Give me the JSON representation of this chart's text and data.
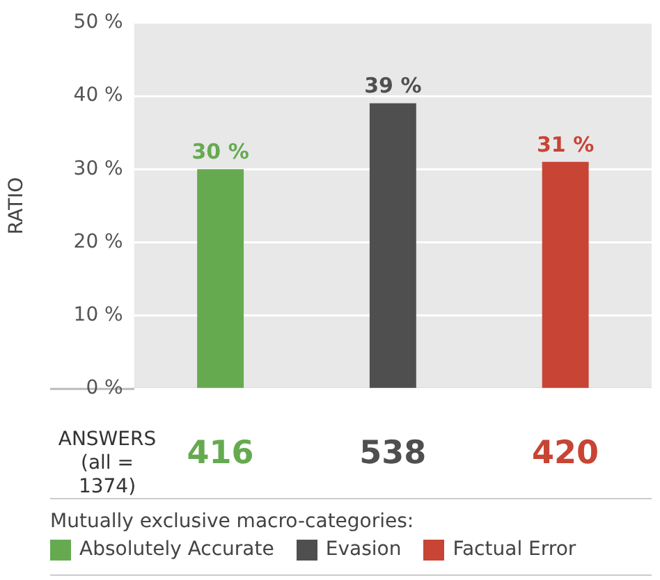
{
  "chart_data": {
    "type": "bar",
    "ylabel": "RATIO",
    "categories": [
      null,
      null,
      null
    ],
    "series": [
      {
        "name": "Absolutely Accurate",
        "color": "#66aa50",
        "values": [
          30,
          null,
          null
        ],
        "value_labels": [
          "30 %",
          null,
          null
        ]
      },
      {
        "name": "Evasion",
        "color": "#4f4f4f",
        "values": [
          null,
          39,
          null
        ],
        "value_labels": [
          null,
          "39 %",
          null
        ]
      },
      {
        "name": "Factual Error",
        "color": "#c84434",
        "values": [
          null,
          null,
          31
        ],
        "value_labels": [
          null,
          null,
          "31 %"
        ]
      }
    ],
    "ylim": [
      0,
      50
    ],
    "yticks": [
      {
        "value": 0,
        "label": "0 %"
      },
      {
        "value": 10,
        "label": "10 %"
      },
      {
        "value": 20,
        "label": "20 %"
      },
      {
        "value": 30,
        "label": "30 %"
      },
      {
        "value": 40,
        "label": "40 %"
      },
      {
        "value": 50,
        "label": "50 %"
      }
    ],
    "grid": "y",
    "legend": "bottom",
    "legend_title": "Mutually exclusive macro-categories:",
    "annotations": [
      "ANSWERS",
      "(all = 1374)",
      "416",
      "538",
      "420"
    ]
  }
}
